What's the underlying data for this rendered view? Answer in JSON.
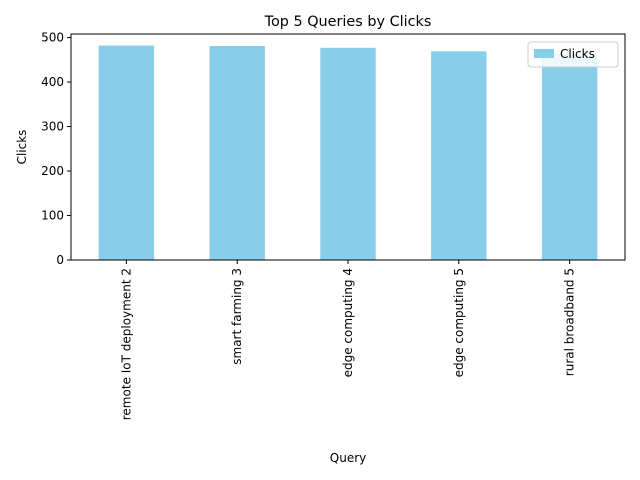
{
  "chart_data": {
    "type": "bar",
    "title": "Top 5 Queries by Clicks",
    "xlabel": "Query",
    "ylabel": "Clicks",
    "categories": [
      "remote IoT deployment 2",
      "smart farming 3",
      "edge computing 4",
      "edge computing 5",
      "rural broadband 5"
    ],
    "series": [
      {
        "name": "Clicks",
        "values": [
          482,
          481,
          477,
          469,
          463
        ]
      }
    ],
    "ylim": [
      0,
      508
    ],
    "yticks": [
      0,
      100,
      200,
      300,
      400,
      500
    ],
    "grid": false,
    "legend_position": "top-right",
    "bar_color": "#87ceeb"
  }
}
